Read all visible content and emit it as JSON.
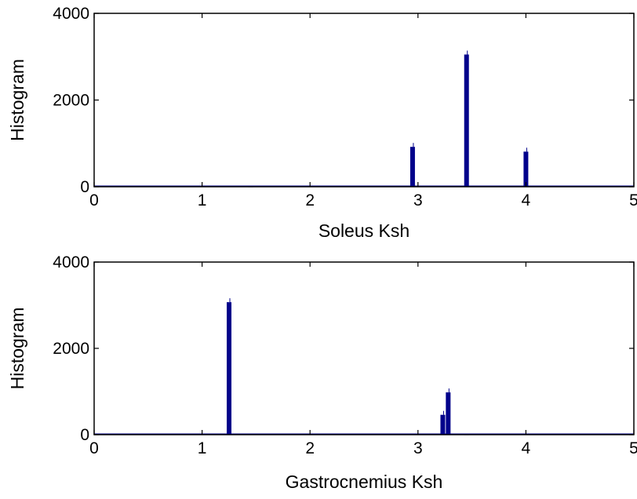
{
  "chart_data": [
    {
      "type": "bar",
      "xlabel": "Soleus Ksh",
      "ylabel": "Histogram",
      "xlim": [
        0,
        5
      ],
      "ylim": [
        0,
        4000
      ],
      "xticks": [
        "0",
        "1",
        "2",
        "3",
        "4",
        "5"
      ],
      "yticks": [
        "0",
        "2000",
        "4000"
      ],
      "grid": false,
      "bar_color": "#00008b",
      "bars": [
        {
          "x": 2.95,
          "y": 920
        },
        {
          "x": 3.45,
          "y": 3050
        },
        {
          "x": 4.0,
          "y": 810
        },
        {
          "x": 1.45,
          "y": 8
        }
      ]
    },
    {
      "type": "bar",
      "xlabel": "Gastrocnemius Ksh",
      "ylabel": "Histogram",
      "xlim": [
        0,
        5
      ],
      "ylim": [
        0,
        4000
      ],
      "xticks": [
        "0",
        "1",
        "2",
        "3",
        "4",
        "5"
      ],
      "yticks": [
        "0",
        "2000",
        "4000"
      ],
      "grid": false,
      "bar_color": "#00008b",
      "bars": [
        {
          "x": 1.25,
          "y": 3070
        },
        {
          "x": 3.23,
          "y": 460
        },
        {
          "x": 3.28,
          "y": 980
        },
        {
          "x": 3.45,
          "y": 8
        }
      ]
    }
  ]
}
